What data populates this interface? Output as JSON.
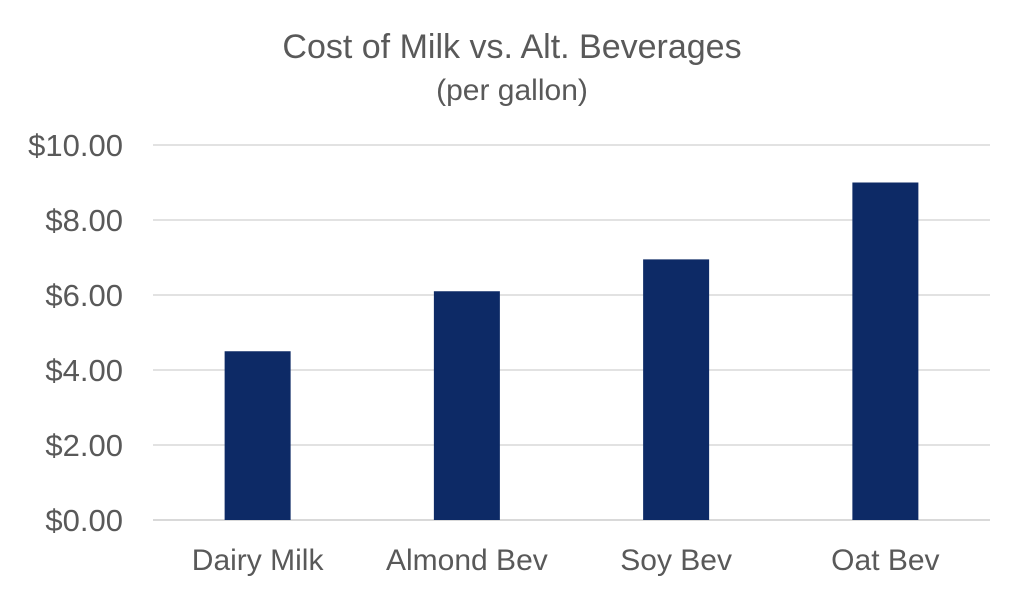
{
  "chart_data": {
    "type": "bar",
    "title": "Cost of Milk vs. Alt. Beverages",
    "subtitle": "(per gallon)",
    "categories": [
      "Dairy Milk",
      "Almond Bev",
      "Soy Bev",
      "Oat Bev"
    ],
    "values": [
      4.5,
      6.1,
      6.95,
      9.0
    ],
    "ylim": [
      0,
      10
    ],
    "yticks": [
      0,
      2,
      4,
      6,
      8,
      10
    ],
    "ytick_labels": [
      "$0.00",
      "$2.00",
      "$4.00",
      "$6.00",
      "$8.00",
      "$10.00"
    ],
    "xlabel": "",
    "ylabel": "",
    "grid": true,
    "legend": "none",
    "bar_color": "#0d2a66",
    "grid_color": "#d9d9d9",
    "text_color": "#595959"
  }
}
